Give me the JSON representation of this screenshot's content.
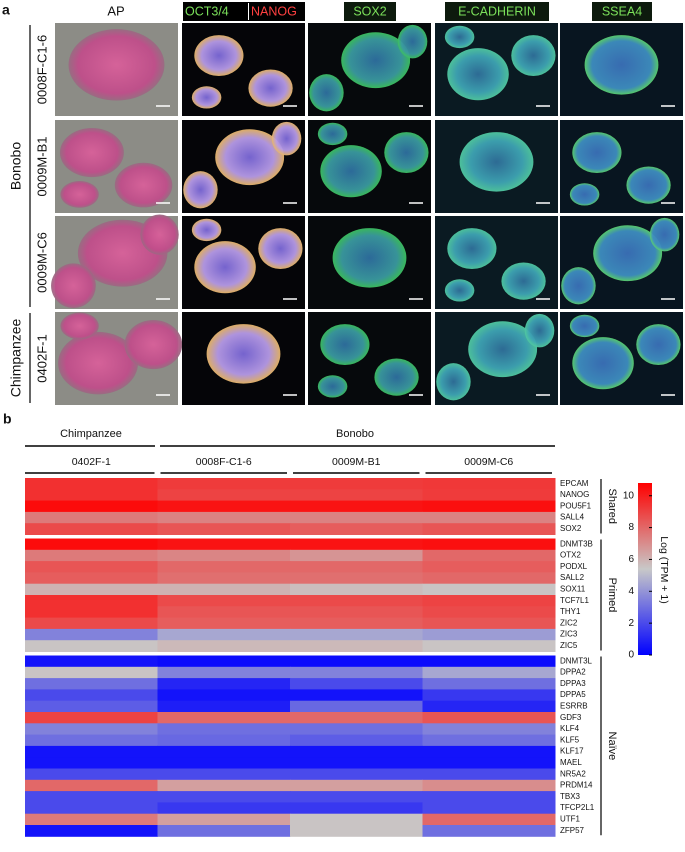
{
  "panel_a": {
    "label": "a",
    "headers": [
      "AP",
      "OCT3/4",
      "NANOG",
      "SOX2",
      "E-CADHERIN",
      "SSEA4"
    ],
    "rows": [
      "0008F-C1-6",
      "0009M-B1",
      "0009M-C6",
      "0402F-1"
    ],
    "species": [
      "Bonobo",
      "Chimpanzee"
    ]
  },
  "chart_data": {
    "type": "heatmap",
    "panel_label": "b",
    "species": [
      "Chimpanzee",
      "Bonobo"
    ],
    "columns": [
      "0402F-1",
      "0008F-C1-6",
      "0009M-B1",
      "0009M-C6"
    ],
    "groups": [
      {
        "name": "Shared",
        "genes": [
          "EPCAM",
          "NANOG",
          "POU5F1",
          "SALL4",
          "SOX2"
        ],
        "values": [
          [
            9.5,
            9.2,
            9.2,
            9.3
          ],
          [
            9.5,
            9.0,
            9.0,
            9.2
          ],
          [
            10.5,
            10.3,
            10.3,
            10.4
          ],
          [
            7.5,
            7.3,
            7.3,
            7.3
          ],
          [
            8.8,
            8.5,
            8.3,
            8.5
          ]
        ]
      },
      {
        "name": "Primed",
        "genes": [
          "DNMT3B",
          "OTX2",
          "PODXL",
          "SALL2",
          "SOX11",
          "TCF7L1",
          "THY1",
          "ZIC2",
          "ZIC3",
          "ZIC5"
        ],
        "values": [
          [
            10.5,
            10.3,
            10.3,
            10.4
          ],
          [
            7.5,
            7.2,
            6.8,
            8.0
          ],
          [
            8.5,
            8.0,
            8.0,
            8.3
          ],
          [
            8.3,
            7.8,
            7.8,
            8.0
          ],
          [
            6.0,
            6.0,
            5.7,
            5.5
          ],
          [
            9.5,
            8.8,
            8.8,
            9.0
          ],
          [
            9.5,
            8.5,
            8.5,
            8.8
          ],
          [
            8.8,
            8.3,
            8.3,
            8.5
          ],
          [
            3.5,
            4.5,
            4.5,
            4.2
          ],
          [
            5.5,
            5.8,
            5.8,
            5.5
          ]
        ]
      },
      {
        "name": "Naïve",
        "genes": [
          "DNMT3L",
          "DPPA2",
          "DPPA3",
          "DPPA5",
          "ESRRB",
          "GDF3",
          "KLF4",
          "KLF5",
          "KLF17",
          "MAEL",
          "NR5A2",
          "PRDM14",
          "TBX3",
          "TFCP2L1",
          "UTF1",
          "ZFP57"
        ],
        "values": [
          [
            0.5,
            0.3,
            0.3,
            0.3
          ],
          [
            5.5,
            3.5,
            3.5,
            4.5
          ],
          [
            3.0,
            1.0,
            2.0,
            3.0
          ],
          [
            2.0,
            0.5,
            0.5,
            1.5
          ],
          [
            2.5,
            0.8,
            2.8,
            1.0
          ],
          [
            9.0,
            8.0,
            8.0,
            8.5
          ],
          [
            3.5,
            3.0,
            3.0,
            3.5
          ],
          [
            3.0,
            2.8,
            2.5,
            3.0
          ],
          [
            0.5,
            0.5,
            0.5,
            0.5
          ],
          [
            0.5,
            0.5,
            0.5,
            0.5
          ],
          [
            2.0,
            2.0,
            2.0,
            2.0
          ],
          [
            8.0,
            6.5,
            6.5,
            7.0
          ],
          [
            2.0,
            2.0,
            2.0,
            2.0
          ],
          [
            2.0,
            1.5,
            1.5,
            2.0
          ],
          [
            7.5,
            6.5,
            5.5,
            8.0
          ],
          [
            0.5,
            3.0,
            5.5,
            3.0
          ]
        ]
      }
    ],
    "zlim": [
      0,
      10.8
    ],
    "zticks": [
      0,
      2,
      4,
      6,
      8,
      10
    ],
    "colorbar_label": "Log (TPM + 1)",
    "colors": [
      "#0000ff",
      "#c8c8c8",
      "#ff0000"
    ]
  }
}
